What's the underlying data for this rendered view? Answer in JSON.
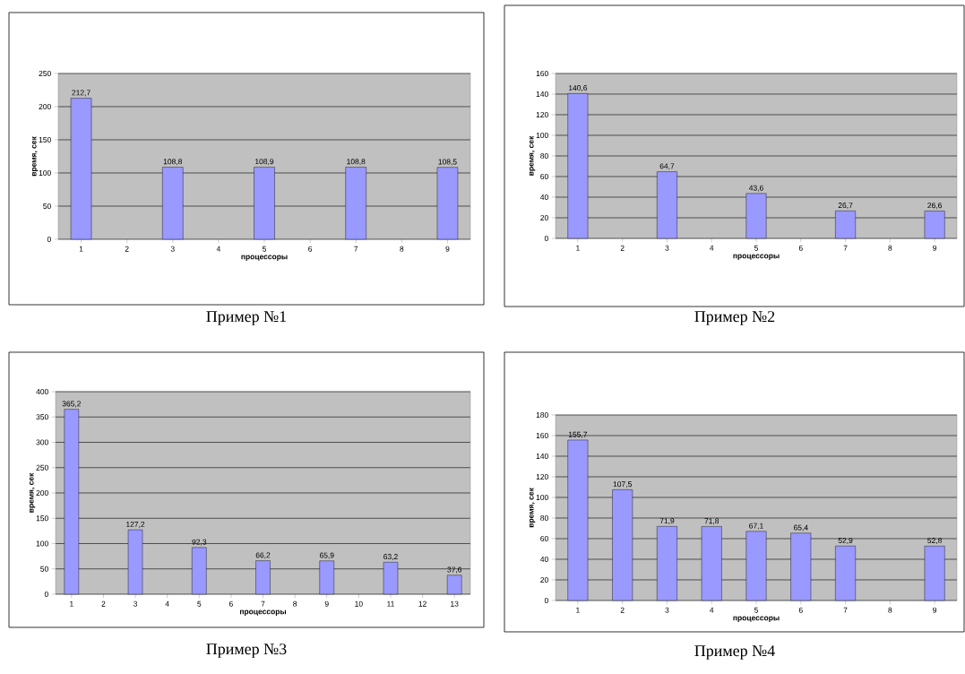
{
  "chart_data": [
    {
      "type": "bar",
      "title": "Пример №1",
      "xlabel": "процессоры",
      "ylabel": "время, сек",
      "categories": [
        "1",
        "2",
        "3",
        "4",
        "5",
        "6",
        "7",
        "8",
        "9"
      ],
      "values": [
        212.7,
        null,
        108.8,
        null,
        108.9,
        null,
        108.8,
        null,
        108.5
      ],
      "value_labels": [
        "212,7",
        null,
        "108,8",
        null,
        "108,9",
        null,
        "108,8",
        null,
        "108,5"
      ],
      "color": "#9999ff",
      "ylim": [
        0,
        250
      ],
      "yticks": [
        0,
        50,
        100,
        150,
        200,
        250
      ],
      "grid": "y"
    },
    {
      "type": "bar",
      "title": "Пример №2",
      "xlabel": "процессоры",
      "ylabel": "время, сек",
      "categories": [
        "1",
        "2",
        "3",
        "4",
        "5",
        "6",
        "7",
        "8",
        "9"
      ],
      "values": [
        140.6,
        null,
        64.7,
        null,
        43.6,
        null,
        26.7,
        null,
        26.6
      ],
      "value_labels": [
        "140,6",
        null,
        "64,7",
        null,
        "43,6",
        null,
        "26,7",
        null,
        "26,6"
      ],
      "color": "#9999ff",
      "ylim": [
        0,
        160
      ],
      "yticks": [
        0,
        20,
        40,
        60,
        80,
        100,
        120,
        140,
        160
      ],
      "grid": "y"
    },
    {
      "type": "bar",
      "title": "Пример №3",
      "xlabel": "процессоры",
      "ylabel": "время, сек",
      "categories": [
        "1",
        "2",
        "3",
        "4",
        "5",
        "6",
        "7",
        "8",
        "9",
        "10",
        "11",
        "12",
        "13"
      ],
      "values": [
        365.2,
        null,
        127.2,
        null,
        92.3,
        null,
        66.2,
        null,
        65.9,
        null,
        63.2,
        null,
        37.6
      ],
      "value_labels": [
        "365,2",
        null,
        "127,2",
        null,
        "92,3",
        null,
        "66,2",
        null,
        "65,9",
        null,
        "63,2",
        null,
        "37,6"
      ],
      "color": "#9999ff",
      "ylim": [
        0,
        400
      ],
      "yticks": [
        0,
        50,
        100,
        150,
        200,
        250,
        300,
        350,
        400
      ],
      "grid": "y"
    },
    {
      "type": "bar",
      "title": "Пример №4",
      "xlabel": "процессоры",
      "ylabel": "время, сек",
      "categories": [
        "1",
        "2",
        "3",
        "4",
        "5",
        "6",
        "7",
        "8",
        "9"
      ],
      "values": [
        155.7,
        107.5,
        71.9,
        71.8,
        67.1,
        65.4,
        52.9,
        null,
        52.8
      ],
      "value_labels": [
        "155,7",
        "107,5",
        "71,9",
        "71,8",
        "67,1",
        "65,4",
        "52,9",
        null,
        "52,8"
      ],
      "color": "#9999ff",
      "ylim": [
        0,
        180
      ],
      "yticks": [
        0,
        20,
        40,
        60,
        80,
        100,
        120,
        140,
        160,
        180
      ],
      "grid": "y"
    }
  ]
}
